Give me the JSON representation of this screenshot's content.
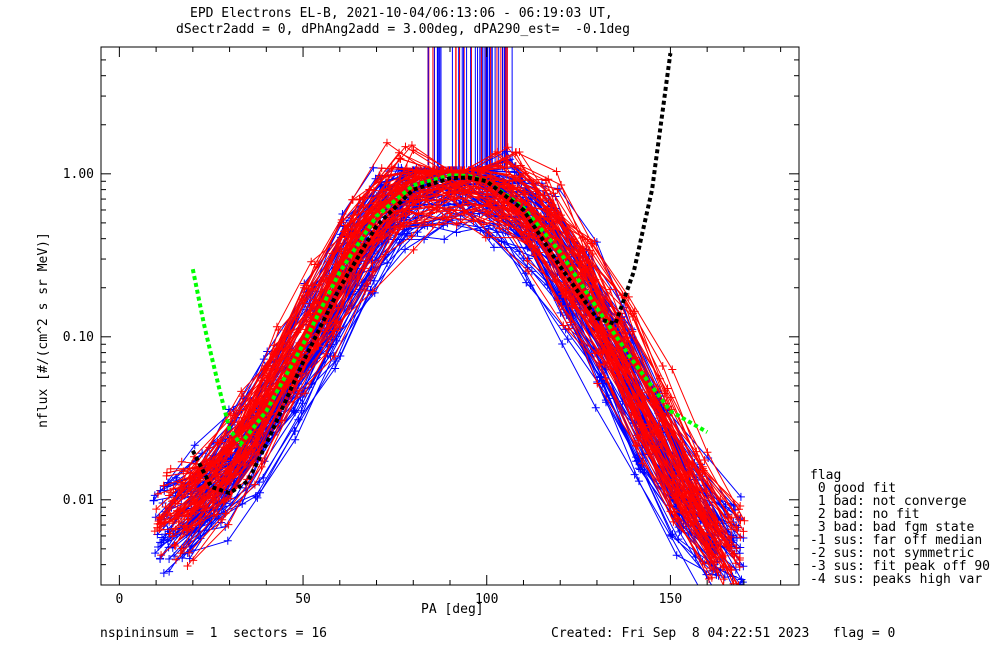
{
  "chart_data": {
    "type": "line",
    "title": "EPD Electrons EL-B, 2021-10-04/06:13:06 - 06:19:03 UT,",
    "subtitle": "dSectr2add = 0, dPhAng2add = 3.00deg, dPA290_est=  -0.1deg",
    "xlabel": "PA [deg]",
    "ylabel": "nflux [#/(cm^2 s sr MeV)]",
    "xlim": [
      -5,
      185
    ],
    "ylim": [
      0.003,
      6.0
    ],
    "yscale": "log",
    "xticks": [
      "0",
      "50",
      "100",
      "150"
    ],
    "yticks": [
      "0.01",
      "0.10",
      "1.00"
    ],
    "grid": false,
    "series": [
      {
        "color": "#0000ff",
        "marker": "+",
        "x": [
          15,
          25,
          35,
          45,
          55,
          65,
          75,
          85,
          95,
          105,
          115,
          125,
          135,
          145,
          155,
          165
        ],
        "y": [
          0.007,
          0.011,
          0.02,
          0.045,
          0.11,
          0.3,
          0.62,
          0.85,
          0.88,
          0.7,
          0.42,
          0.18,
          0.075,
          0.025,
          0.009,
          0.005
        ]
      },
      {
        "color": "#ff0000",
        "marker": "+",
        "x": [
          15,
          25,
          35,
          45,
          55,
          65,
          75,
          85,
          95,
          105,
          115,
          125,
          135,
          145,
          155,
          165
        ],
        "y": [
          0.008,
          0.013,
          0.025,
          0.06,
          0.15,
          0.38,
          0.72,
          0.92,
          0.9,
          0.78,
          0.5,
          0.22,
          0.09,
          0.03,
          0.011,
          0.005
        ]
      },
      {
        "color": "#00ff00",
        "style": "dashed",
        "x": [
          20,
          23,
          27,
          30,
          33,
          40,
          50,
          60,
          70,
          80,
          90,
          95,
          100,
          110,
          120,
          130,
          140,
          150,
          160
        ],
        "y": [
          0.26,
          0.12,
          0.05,
          0.027,
          0.022,
          0.035,
          0.09,
          0.25,
          0.55,
          0.85,
          0.98,
          0.97,
          0.9,
          0.62,
          0.33,
          0.15,
          0.07,
          0.035,
          0.026
        ]
      },
      {
        "color": "#000000",
        "style": "dashed",
        "x": [
          20,
          25,
          30,
          35,
          40,
          50,
          60,
          70,
          80,
          90,
          95,
          100,
          110,
          120,
          130,
          135,
          140,
          145,
          150
        ],
        "y": [
          0.02,
          0.012,
          0.011,
          0.013,
          0.022,
          0.07,
          0.2,
          0.48,
          0.8,
          0.94,
          0.95,
          0.9,
          0.6,
          0.27,
          0.13,
          0.12,
          0.25,
          0.8,
          5.5
        ]
      }
    ],
    "vlines": {
      "color": "#0000ff",
      "color2": "#ff0000",
      "x_range": [
        84,
        107
      ]
    },
    "annotations": {
      "footer_left": "nspininsum =  1  sectors = 16",
      "footer_right": "Created: Fri Sep  8 04:22:51 2023   flag = 0"
    },
    "legend": {
      "title": "flag",
      "position": "bottom-right, outside plot",
      "entries": [
        " 0 good fit",
        " 1 bad: not converge",
        " 2 bad: no fit",
        " 3 bad: bad fgm state",
        "-1 sus: far off median",
        "-2 sus: not symmetric",
        "-3 sus: fit peak off 90",
        "-4 sus: peaks high var"
      ]
    }
  }
}
